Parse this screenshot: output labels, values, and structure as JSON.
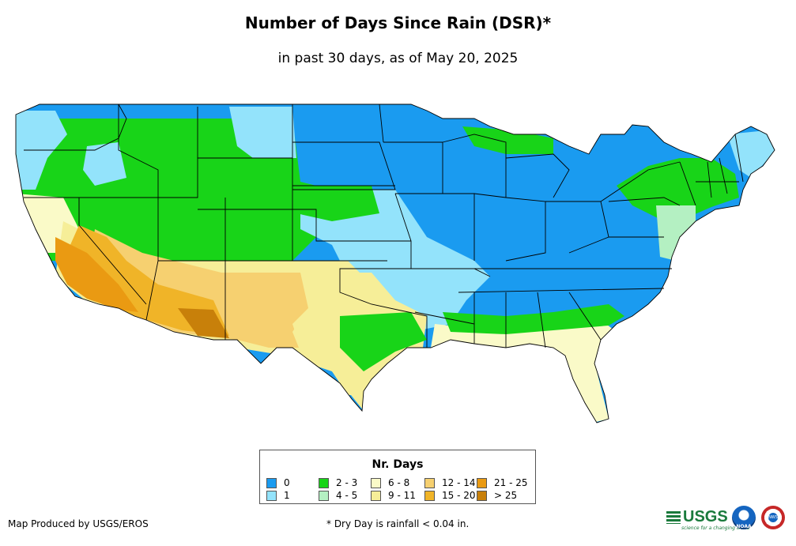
{
  "header": {
    "title": "Number of Days Since Rain (DSR)*",
    "subtitle": "in past 30 days, as of May 20, 2025"
  },
  "legend": {
    "title": "Nr. Days",
    "items": [
      {
        "label": "0",
        "color": "#1a9bf0"
      },
      {
        "label": "1",
        "color": "#93e3fb"
      },
      {
        "label": "2 - 3",
        "color": "#18d418"
      },
      {
        "label": "4 - 5",
        "color": "#b4f0c2"
      },
      {
        "label": "6 - 8",
        "color": "#fafac8"
      },
      {
        "label": "9 - 11",
        "color": "#f6ee98"
      },
      {
        "label": "12 - 14",
        "color": "#f6d070"
      },
      {
        "label": "15 - 20",
        "color": "#f0b428"
      },
      {
        "label": "21 - 25",
        "color": "#ea9a12"
      },
      {
        "label": "> 25",
        "color": "#c8800a"
      }
    ]
  },
  "map": {
    "region": "Contiguous United States",
    "regions": [
      {
        "name": "northeast-great-lakes-ohio-valley",
        "category": "0"
      },
      {
        "name": "northern-plains-dakotas",
        "category": "0"
      },
      {
        "name": "pacific-northwest-coast",
        "category": "0"
      },
      {
        "name": "central-plains-mississippi-valley",
        "category": "1"
      },
      {
        "name": "northern-rockies-montana",
        "category": "2 - 3"
      },
      {
        "name": "great-basin-colorado",
        "category": "2 - 3"
      },
      {
        "name": "new-england-new-york",
        "category": "2 - 3"
      },
      {
        "name": "mid-atlantic",
        "category": "4 - 5"
      },
      {
        "name": "southeast-florida",
        "category": "6 - 8"
      },
      {
        "name": "texas-oklahoma-south",
        "category": "9 - 11"
      },
      {
        "name": "new-mexico-texas-west",
        "category": "12 - 14"
      },
      {
        "name": "arizona-nevada",
        "category": "15 - 20"
      },
      {
        "name": "southern-california",
        "category": "21 - 25"
      },
      {
        "name": "desert-southwest",
        "category": "> 25"
      }
    ]
  },
  "footer": {
    "credit": "Map Produced by USGS/EROS",
    "note": "* Dry Day is rainfall < 0.04 in.",
    "usgs_logo": "USGS",
    "usgs_tagline": "science for a changing world",
    "noaa_logo": "NOAA",
    "nws_logo": "NWS"
  }
}
